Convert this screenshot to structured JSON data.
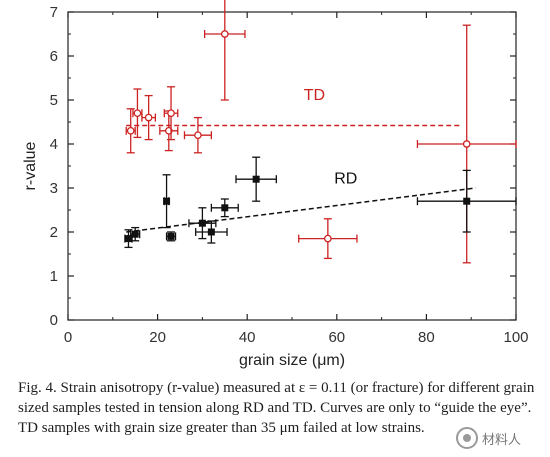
{
  "chart_data": {
    "type": "scatter",
    "xlabel": "grain size (μm)",
    "ylabel": "r-value",
    "xlim": [
      0,
      100
    ],
    "ylim": [
      0,
      7
    ],
    "xticks": [
      "0",
      "20",
      "40",
      "60",
      "80",
      "100"
    ],
    "yticks": [
      "0",
      "1",
      "2",
      "3",
      "4",
      "5",
      "6",
      "7"
    ],
    "grid": false,
    "annotations": [
      "TD",
      "RD"
    ],
    "series": [
      {
        "name": "TD",
        "color": "#cc2222",
        "marker": "open",
        "points": [
          {
            "x": 14,
            "y": 4.3,
            "xerr": 1.0,
            "yerr": 0.5
          },
          {
            "x": 15.5,
            "y": 4.7,
            "xerr": 1.0,
            "yerr": 0.55
          },
          {
            "x": 18,
            "y": 4.6,
            "xerr": 1.5,
            "yerr": 0.5
          },
          {
            "x": 22.5,
            "y": 4.3,
            "xerr": 2.0,
            "yerr": 0.45
          },
          {
            "x": 23,
            "y": 4.7,
            "xerr": 1.5,
            "yerr": 0.6
          },
          {
            "x": 29,
            "y": 4.2,
            "xerr": 3.0,
            "yerr": 0.4
          },
          {
            "x": 35,
            "y": 6.5,
            "xerr": 4.5,
            "yerr": 1.5
          },
          {
            "x": 58,
            "y": 1.85,
            "xerr": 6.5,
            "yerr": 0.45
          },
          {
            "x": 89,
            "y": 4.0,
            "xerr": 11.0,
            "yerr": 2.7
          }
        ],
        "guide_line": {
          "x": [
            13,
            88
          ],
          "y": [
            4.42,
            4.42
          ],
          "style": "dashed"
        }
      },
      {
        "name": "RD",
        "color": "#111111",
        "marker": "filled",
        "points": [
          {
            "x": 13.5,
            "y": 1.85,
            "xerr": 0.8,
            "yerr": 0.2
          },
          {
            "x": 15,
            "y": 1.95,
            "xerr": 1.0,
            "yerr": 0.15
          },
          {
            "x": 22,
            "y": 2.7,
            "xerr": 0.5,
            "yerr": 0.6
          },
          {
            "x": 23,
            "y": 1.9,
            "xerr": 1.0,
            "yerr": 0.1
          },
          {
            "x": 30,
            "y": 2.2,
            "xerr": 3.0,
            "yerr": 0.35
          },
          {
            "x": 32,
            "y": 2.0,
            "xerr": 3.5,
            "yerr": 0.25
          },
          {
            "x": 35,
            "y": 2.55,
            "xerr": 3.0,
            "yerr": 0.2
          },
          {
            "x": 42,
            "y": 3.2,
            "xerr": 4.5,
            "yerr": 0.5
          },
          {
            "x": 89,
            "y": 2.7,
            "xerr": 11.0,
            "yerr": 0.7
          }
        ],
        "guide_line": {
          "x": [
            13,
            91
          ],
          "y": [
            2.0,
            3.0
          ],
          "style": "dashed"
        }
      }
    ]
  },
  "caption": {
    "text": "Fig. 4.  Strain anisotropy (r-value) measured at ε = 0.11 (or fracture) for different grain sized samples tested in tension along RD and TD. Curves are only to “guide the eye”. TD samples with grain size greater than 35 μm failed at low strains."
  },
  "watermark": {
    "text": "材料人"
  }
}
